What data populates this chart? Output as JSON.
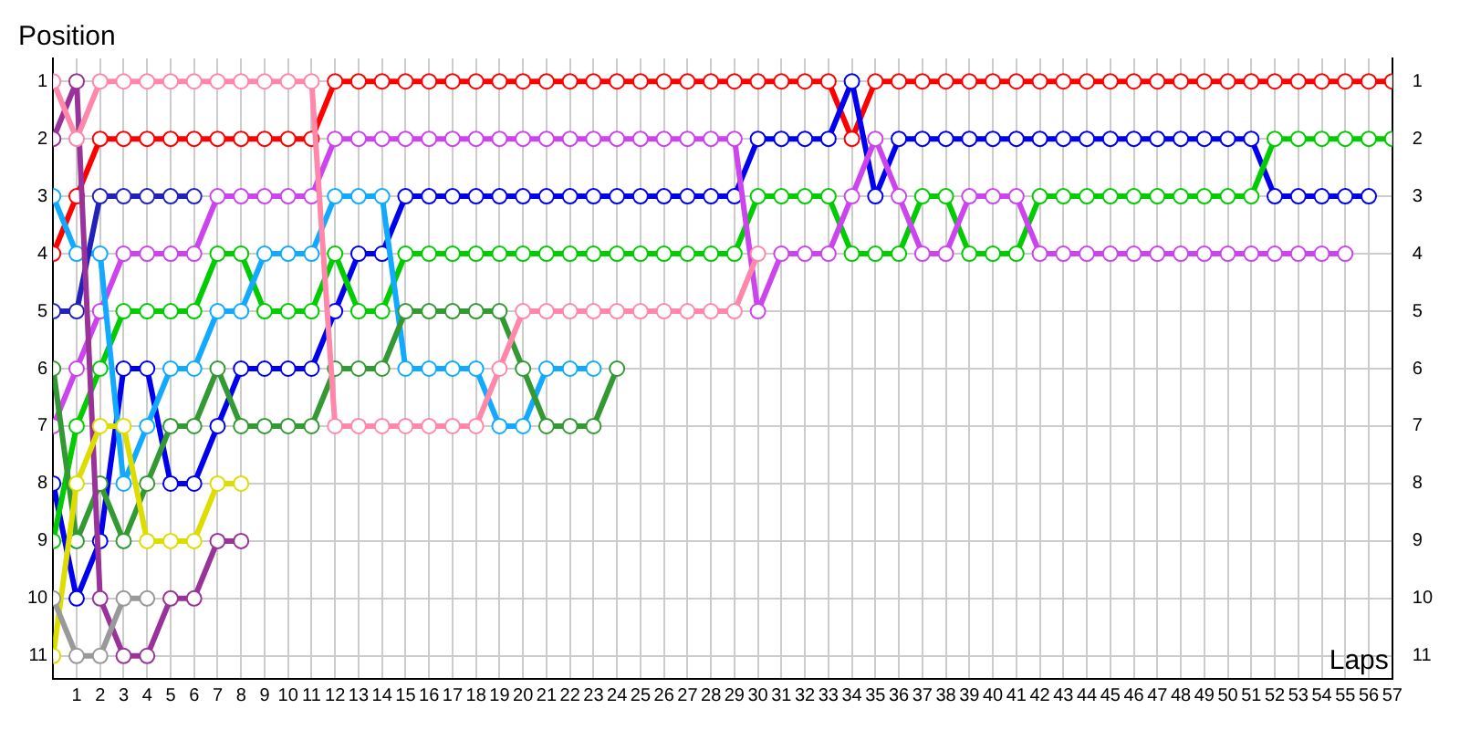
{
  "chart_data": {
    "type": "line",
    "xlabel": "Laps",
    "ylabel": "Position",
    "x": [
      0,
      1,
      2,
      3,
      4,
      5,
      6,
      7,
      8,
      9,
      10,
      11,
      12,
      13,
      14,
      15,
      16,
      17,
      18,
      19,
      20,
      21,
      22,
      23,
      24,
      25,
      26,
      27,
      28,
      29,
      30,
      31,
      32,
      33,
      34,
      35,
      36,
      37,
      38,
      39,
      40,
      41,
      42,
      43,
      44,
      45,
      46,
      47,
      48,
      49,
      50,
      51,
      52,
      53,
      54,
      55,
      56,
      57
    ],
    "series": [
      {
        "color": "#ff88aa",
        "values": [
          1,
          2,
          1,
          1,
          1,
          1,
          1,
          1,
          1,
          1,
          1,
          1,
          7,
          7,
          7,
          7,
          7,
          7,
          7,
          6,
          5,
          5,
          5,
          5,
          5,
          5,
          5,
          5,
          5,
          5,
          4,
          null,
          null,
          null,
          null,
          null,
          null,
          null,
          null,
          null,
          null,
          null,
          null,
          null,
          null,
          null,
          null,
          null,
          null,
          null,
          null,
          null,
          null,
          null,
          null,
          null,
          null,
          null
        ]
      },
      {
        "color": "#999999",
        "values": [
          10,
          11,
          11,
          10,
          10,
          null,
          null,
          null,
          null,
          null,
          null,
          null,
          null,
          null,
          null,
          null,
          null,
          null,
          null,
          null,
          null,
          null,
          null,
          null,
          null,
          null,
          null,
          null,
          null,
          null,
          null,
          null,
          null,
          null,
          null,
          null,
          null,
          null,
          null,
          null,
          null,
          null,
          null,
          null,
          null,
          null,
          null,
          null,
          null,
          null,
          null,
          null,
          null,
          null,
          null,
          null,
          null,
          null
        ]
      },
      {
        "color": "#dddd00",
        "values": [
          11,
          8,
          7,
          7,
          9,
          9,
          9,
          8,
          8,
          null,
          null,
          null,
          null,
          null,
          null,
          null,
          null,
          null,
          null,
          null,
          null,
          null,
          null,
          null,
          null,
          null,
          null,
          null,
          null,
          null,
          null,
          null,
          null,
          null,
          null,
          null,
          null,
          null,
          null,
          null,
          null,
          null,
          null,
          null,
          null,
          null,
          null,
          null,
          null,
          null,
          null,
          null,
          null,
          null,
          null,
          null,
          null,
          null
        ]
      },
      {
        "color": "#993399",
        "values": [
          2,
          1,
          10,
          11,
          11,
          10,
          10,
          9,
          9,
          null,
          null,
          null,
          null,
          null,
          null,
          null,
          null,
          null,
          null,
          null,
          null,
          null,
          null,
          null,
          null,
          null,
          null,
          null,
          null,
          null,
          null,
          null,
          null,
          null,
          null,
          null,
          null,
          null,
          null,
          null,
          null,
          null,
          null,
          null,
          null,
          null,
          null,
          null,
          null,
          null,
          null,
          null,
          null,
          null,
          null,
          null,
          null,
          null
        ]
      },
      {
        "color": "#2222bb",
        "values": [
          5,
          5,
          3,
          3,
          3,
          3,
          3,
          null,
          null,
          null,
          null,
          null,
          null,
          null,
          null,
          null,
          null,
          null,
          null,
          null,
          null,
          null,
          null,
          null,
          null,
          null,
          null,
          null,
          null,
          null,
          null,
          null,
          null,
          null,
          null,
          null,
          null,
          null,
          null,
          null,
          null,
          null,
          null,
          null,
          null,
          null,
          null,
          null,
          null,
          null,
          null,
          null,
          null,
          null,
          null,
          null,
          null,
          null
        ]
      },
      {
        "color": "#339933",
        "values": [
          6,
          9,
          8,
          9,
          8,
          7,
          7,
          6,
          7,
          7,
          7,
          7,
          6,
          6,
          6,
          5,
          5,
          5,
          5,
          5,
          6,
          7,
          7,
          7,
          6,
          null,
          null,
          null,
          null,
          null,
          null,
          null,
          null,
          null,
          null,
          null,
          null,
          null,
          null,
          null,
          null,
          null,
          null,
          null,
          null,
          null,
          null,
          null,
          null,
          null,
          null,
          null,
          null,
          null,
          null,
          null,
          null,
          null
        ]
      },
      {
        "color": "#11aaff",
        "values": [
          3,
          4,
          4,
          8,
          7,
          6,
          6,
          5,
          5,
          4,
          4,
          4,
          3,
          3,
          3,
          6,
          6,
          6,
          6,
          7,
          7,
          6,
          6,
          6,
          null,
          null,
          null,
          null,
          null,
          null,
          null,
          null,
          null,
          null,
          null,
          null,
          null,
          null,
          null,
          null,
          null,
          null,
          null,
          null,
          null,
          null,
          null,
          null,
          null,
          null,
          null,
          null,
          null,
          null,
          null,
          null,
          null,
          null
        ]
      },
      {
        "color": "#cc44ee",
        "values": [
          7,
          6,
          5,
          4,
          4,
          4,
          4,
          3,
          3,
          3,
          3,
          3,
          2,
          2,
          2,
          2,
          2,
          2,
          2,
          2,
          2,
          2,
          2,
          2,
          2,
          2,
          2,
          2,
          2,
          2,
          5,
          4,
          4,
          4,
          3,
          2,
          3,
          4,
          4,
          3,
          3,
          3,
          4,
          4,
          4,
          4,
          4,
          4,
          4,
          4,
          4,
          4,
          4,
          4,
          4,
          4,
          null,
          null
        ]
      },
      {
        "color": "#00cc00",
        "values": [
          9,
          7,
          6,
          5,
          5,
          5,
          5,
          4,
          4,
          5,
          5,
          5,
          4,
          5,
          5,
          4,
          4,
          4,
          4,
          4,
          4,
          4,
          4,
          4,
          4,
          4,
          4,
          4,
          4,
          4,
          3,
          3,
          3,
          3,
          4,
          4,
          4,
          3,
          3,
          4,
          4,
          4,
          3,
          3,
          3,
          3,
          3,
          3,
          3,
          3,
          3,
          3,
          2,
          2,
          2,
          2,
          2,
          2
        ]
      },
      {
        "color": "#0000ee",
        "values": [
          8,
          10,
          9,
          6,
          6,
          8,
          8,
          7,
          6,
          6,
          6,
          6,
          5,
          4,
          4,
          3,
          3,
          3,
          3,
          3,
          3,
          3,
          3,
          3,
          3,
          3,
          3,
          3,
          3,
          3,
          2,
          2,
          2,
          2,
          1,
          3,
          2,
          2,
          2,
          2,
          2,
          2,
          2,
          2,
          2,
          2,
          2,
          2,
          2,
          2,
          2,
          2,
          3,
          3,
          3,
          3,
          3,
          null
        ]
      },
      {
        "color": "#ff0000",
        "values": [
          4,
          3,
          2,
          2,
          2,
          2,
          2,
          2,
          2,
          2,
          2,
          2,
          1,
          1,
          1,
          1,
          1,
          1,
          1,
          1,
          1,
          1,
          1,
          1,
          1,
          1,
          1,
          1,
          1,
          1,
          1,
          1,
          1,
          1,
          2,
          1,
          1,
          1,
          1,
          1,
          1,
          1,
          1,
          1,
          1,
          1,
          1,
          1,
          1,
          1,
          1,
          1,
          1,
          1,
          1,
          1,
          1,
          1
        ]
      }
    ],
    "xlim": [
      0,
      57
    ],
    "xticks": [
      1,
      2,
      3,
      4,
      5,
      6,
      7,
      8,
      9,
      10,
      11,
      12,
      13,
      14,
      15,
      16,
      17,
      18,
      19,
      20,
      21,
      22,
      23,
      24,
      25,
      26,
      27,
      28,
      29,
      30,
      31,
      32,
      33,
      34,
      35,
      36,
      37,
      38,
      39,
      40,
      41,
      42,
      43,
      44,
      45,
      46,
      47,
      48,
      49,
      50,
      51,
      52,
      53,
      54,
      55,
      56,
      57
    ],
    "ylim": [
      11.4,
      0.6
    ],
    "yticks": [
      1,
      2,
      3,
      4,
      5,
      6,
      7,
      8,
      9,
      10,
      11
    ],
    "y2lim": [
      11.4,
      0.6
    ],
    "y2ticks": [
      1,
      2,
      3,
      4,
      5,
      6,
      7,
      8,
      9,
      10,
      11
    ],
    "grid": true,
    "legend": false,
    "marker": "circle",
    "line_style": "solid"
  }
}
